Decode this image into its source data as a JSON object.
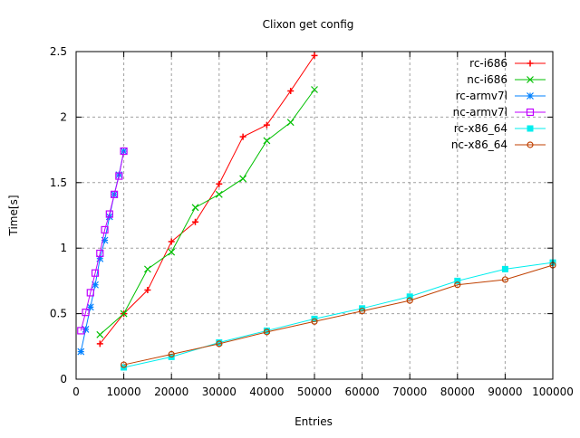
{
  "chart_data": {
    "type": "line",
    "title": "Clixon get config",
    "xlabel": "Entries",
    "ylabel": "Time[s]",
    "xlim": [
      0,
      100000
    ],
    "ylim": [
      0,
      2.5
    ],
    "xticks": [
      "0",
      "10000",
      "20000",
      "30000",
      "40000",
      "50000",
      "60000",
      "70000",
      "80000",
      "90000",
      "100000"
    ],
    "yticks": [
      "0",
      "0.5",
      "1",
      "1.5",
      "2",
      "2.5"
    ],
    "grid": true,
    "legend_position": "top-right",
    "series": [
      {
        "name": "rc-i686",
        "color": "#ff0000",
        "marker": "plus",
        "x": [
          5000,
          10000,
          15000,
          20000,
          25000,
          30000,
          35000,
          40000,
          45000,
          50000
        ],
        "y": [
          0.27,
          0.5,
          0.68,
          1.05,
          1.2,
          1.49,
          1.85,
          1.94,
          2.2,
          2.47
        ]
      },
      {
        "name": "nc-i686",
        "color": "#00c000",
        "marker": "cross",
        "x": [
          5000,
          10000,
          15000,
          20000,
          25000,
          30000,
          35000,
          40000,
          45000,
          50000
        ],
        "y": [
          0.34,
          0.5,
          0.84,
          0.97,
          1.31,
          1.41,
          1.53,
          1.82,
          1.96,
          2.21
        ]
      },
      {
        "name": "rc-armv7l",
        "color": "#0080ff",
        "marker": "star",
        "x": [
          1000,
          2000,
          3000,
          4000,
          5000,
          6000,
          7000,
          8000,
          9000,
          10000
        ],
        "y": [
          0.21,
          0.38,
          0.55,
          0.72,
          0.92,
          1.06,
          1.24,
          1.41,
          1.56,
          1.74
        ]
      },
      {
        "name": "nc-armv7l",
        "color": "#c000ff",
        "marker": "open-square",
        "x": [
          1000,
          2000,
          3000,
          4000,
          5000,
          6000,
          7000,
          8000,
          9000,
          10000
        ],
        "y": [
          0.37,
          0.51,
          0.66,
          0.81,
          0.96,
          1.14,
          1.26,
          1.41,
          1.55,
          1.74
        ]
      },
      {
        "name": "rc-x86_64",
        "color": "#00eeee",
        "marker": "filled-square",
        "x": [
          10000,
          20000,
          30000,
          40000,
          50000,
          60000,
          70000,
          80000,
          90000,
          100000
        ],
        "y": [
          0.09,
          0.17,
          0.28,
          0.37,
          0.46,
          0.54,
          0.63,
          0.75,
          0.84,
          0.89
        ]
      },
      {
        "name": "nc-x86_64",
        "color": "#c04000",
        "marker": "open-circle",
        "x": [
          10000,
          20000,
          30000,
          40000,
          50000,
          60000,
          70000,
          80000,
          90000,
          100000
        ],
        "y": [
          0.11,
          0.19,
          0.27,
          0.36,
          0.44,
          0.52,
          0.6,
          0.72,
          0.76,
          0.87
        ]
      }
    ]
  }
}
